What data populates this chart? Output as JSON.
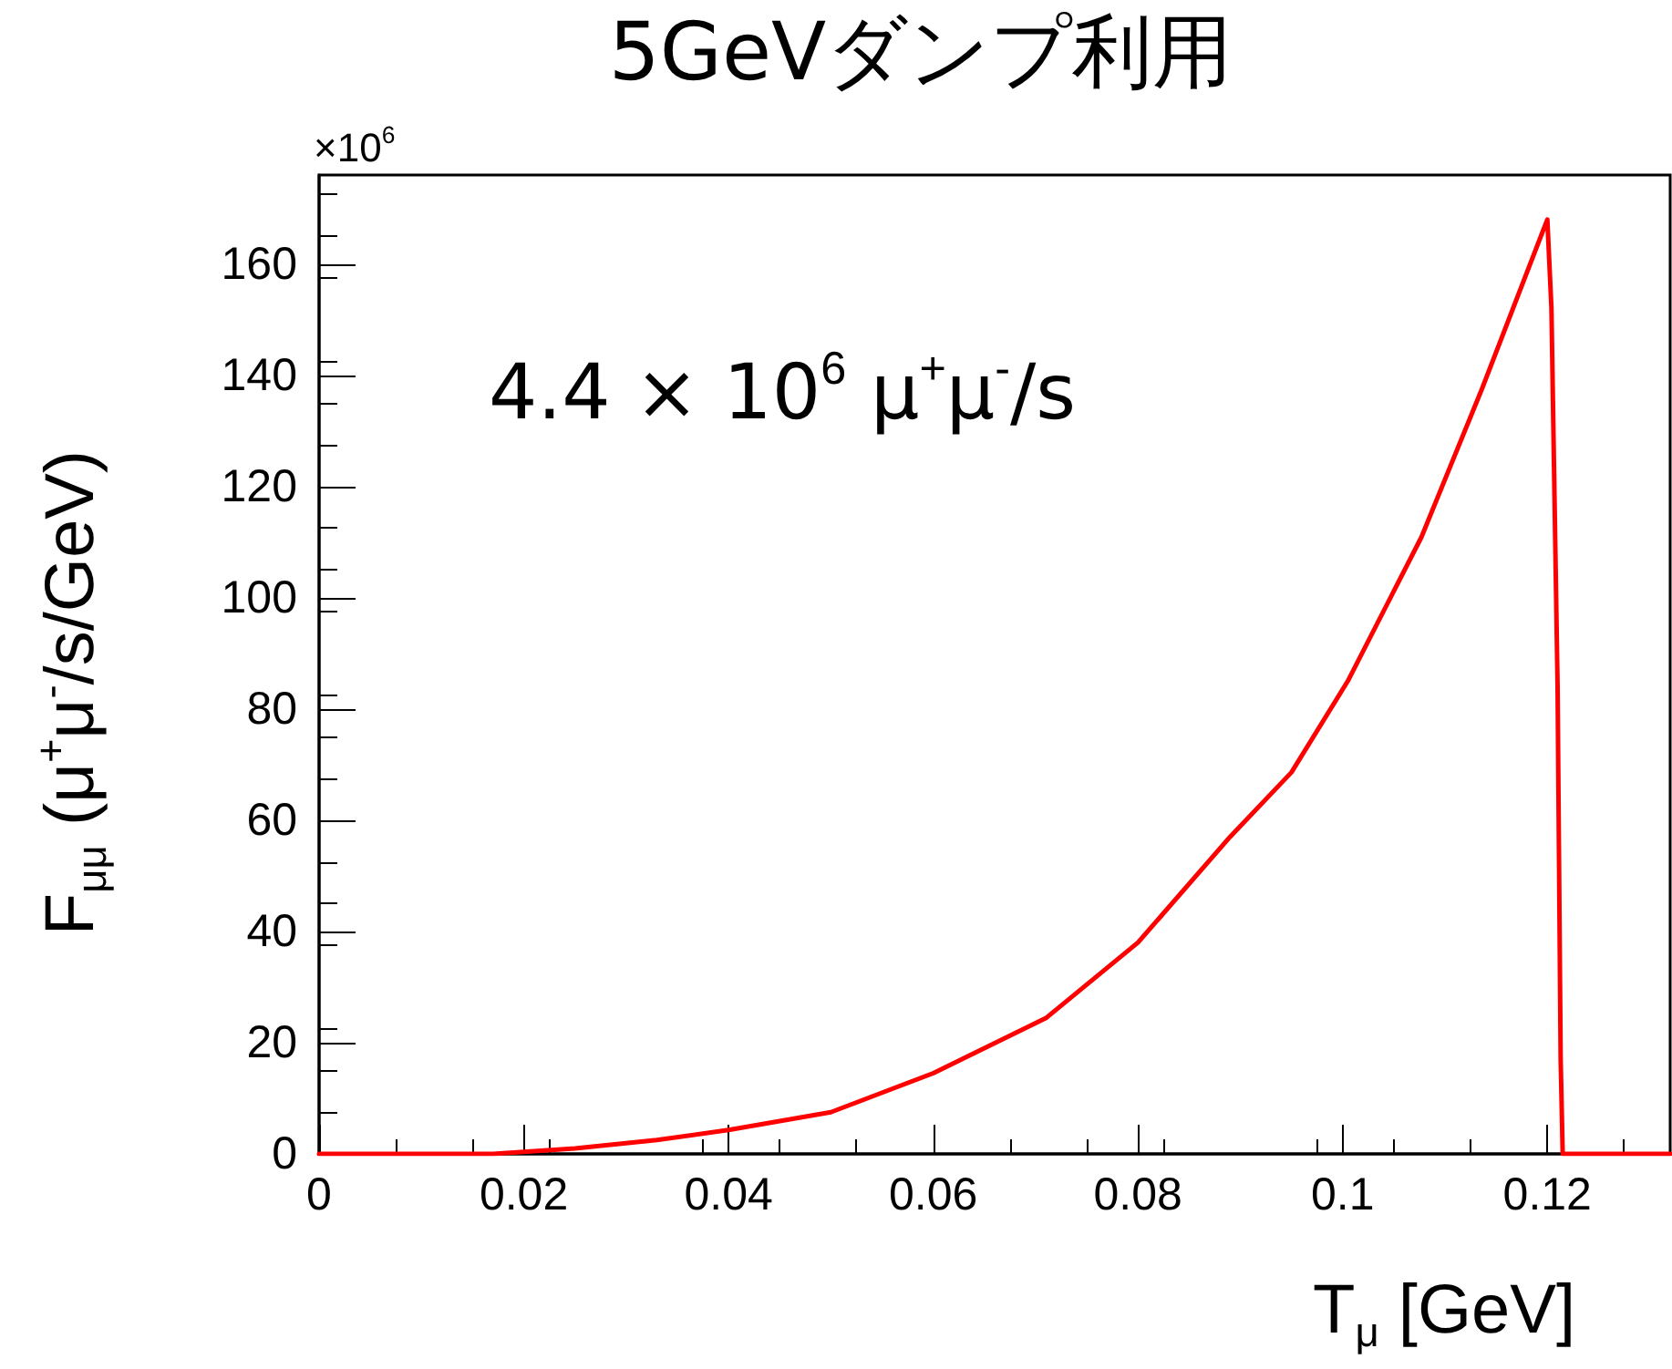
{
  "chart_data": {
    "type": "line",
    "title": "5GeVダンプ利用",
    "xlabel": "T$_{μ}$ [GeV]",
    "ylabel": "F$_{μμ}$ (μ$^{+}$μ$^{-}$/s/GeV)",
    "annotations": [
      "×10$^{6}$",
      "4.4 × 10$^{6}$ μ$^{+}$μ$^{-}$/s"
    ],
    "x": [
      0,
      0.017,
      0.025,
      0.033,
      0.04,
      0.05,
      0.06,
      0.071,
      0.08,
      0.089,
      0.095,
      0.1005,
      0.1077,
      0.1136,
      0.12,
      0.1204,
      0.121,
      0.1213,
      0.1215,
      0.132
    ],
    "series": [
      {
        "color": "#ff0000",
        "values": [
          0,
          0,
          1,
          2.5,
          4.3,
          7.5,
          14.5,
          24.4,
          38,
          57,
          68.6,
          85,
          110.9,
          137.5,
          168,
          152,
          84,
          17,
          0,
          0
        ]
      }
    ],
    "xlim": [
      0,
      0.132
    ],
    "xticks": [
      0,
      0.02,
      0.04,
      0.06,
      0.08,
      0.1,
      0.12
    ],
    "ylim": [
      0,
      176
    ],
    "yticks": [
      0,
      20,
      40,
      60,
      80,
      100,
      120,
      140,
      160
    ],
    "grid": false,
    "marker": "none",
    "line_style": "solid"
  }
}
